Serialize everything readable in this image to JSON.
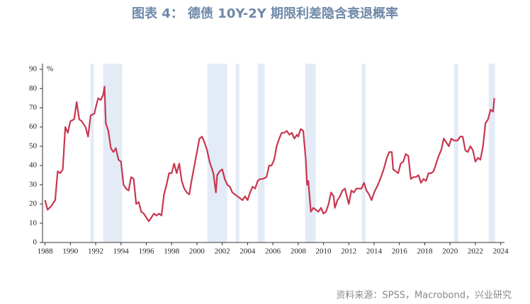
{
  "chart_data": {
    "type": "line",
    "title": "图表 4： 德债 10Y-2Y 期限利差隐含衰退概率",
    "source": "资料来源：SPSS，Macrobond，兴业研究",
    "y_unit": "%",
    "color": "#c8374f",
    "shade_color": "#e3ebf6",
    "shaded_periods": [
      [
        1991.58,
        1991.86
      ],
      [
        1992.59,
        1994.1
      ],
      [
        2000.82,
        2002.39
      ],
      [
        2003.06,
        2003.34
      ],
      [
        2004.8,
        2005.36
      ],
      [
        2008.55,
        2009.39
      ],
      [
        2013.03,
        2013.31
      ],
      [
        2020.31,
        2020.64
      ],
      [
        2023.05,
        2023.55
      ]
    ],
    "x": [
      1988.0,
      1988.2,
      1988.5,
      1988.8,
      1989.0,
      1989.2,
      1989.4,
      1989.6,
      1989.8,
      1990.0,
      1990.3,
      1990.5,
      1990.7,
      1990.9,
      1991.2,
      1991.4,
      1991.6,
      1991.9,
      1992.0,
      1992.2,
      1992.4,
      1992.6,
      1992.7,
      1992.8,
      1993.0,
      1993.2,
      1993.4,
      1993.6,
      1993.8,
      1994.0,
      1994.2,
      1994.4,
      1994.6,
      1994.8,
      1995.0,
      1995.2,
      1995.4,
      1995.6,
      1995.8,
      1996.0,
      1996.2,
      1996.4,
      1996.6,
      1996.8,
      1997.0,
      1997.2,
      1997.4,
      1997.6,
      1997.8,
      1998.0,
      1998.2,
      1998.4,
      1998.6,
      1998.8,
      1999.0,
      1999.2,
      1999.4,
      1999.6,
      1999.8,
      2000.0,
      2000.2,
      2000.4,
      2000.6,
      2000.8,
      2001.0,
      2001.3,
      2001.5,
      2001.6,
      2001.8,
      2002.0,
      2002.2,
      2002.4,
      2002.6,
      2002.8,
      2003.0,
      2003.2,
      2003.4,
      2003.6,
      2003.8,
      2004.0,
      2004.2,
      2004.4,
      2004.6,
      2004.8,
      2005.0,
      2005.2,
      2005.5,
      2005.7,
      2005.9,
      2006.1,
      2006.3,
      2006.5,
      2006.7,
      2006.9,
      2007.1,
      2007.3,
      2007.5,
      2007.7,
      2007.9,
      2008.0,
      2008.2,
      2008.4,
      2008.6,
      2008.7,
      2008.8,
      2009.0,
      2009.2,
      2009.4,
      2009.6,
      2009.8,
      2010.0,
      2010.2,
      2010.4,
      2010.6,
      2010.8,
      2010.9,
      2011.1,
      2011.3,
      2011.5,
      2011.7,
      2011.8,
      2012.0,
      2012.2,
      2012.4,
      2012.6,
      2012.8,
      2013.0,
      2013.2,
      2013.4,
      2013.6,
      2013.8,
      2014.0,
      2014.3,
      2014.6,
      2014.8,
      2015.0,
      2015.2,
      2015.4,
      2015.5,
      2015.7,
      2015.9,
      2016.1,
      2016.3,
      2016.5,
      2016.7,
      2016.9,
      2017.1,
      2017.3,
      2017.5,
      2017.7,
      2017.9,
      2018.1,
      2018.3,
      2018.5,
      2018.7,
      2018.9,
      2019.1,
      2019.3,
      2019.5,
      2019.7,
      2019.9,
      2020.1,
      2020.3,
      2020.6,
      2020.8,
      2021.0,
      2021.2,
      2021.4,
      2021.6,
      2021.8,
      2022.0,
      2022.2,
      2022.4,
      2022.6,
      2022.8,
      2023.0,
      2023.2,
      2023.4,
      2023.5
    ],
    "values": [
      22,
      17,
      19,
      22,
      37,
      36,
      38,
      60,
      57,
      63,
      64,
      73,
      64,
      63,
      60,
      55,
      66,
      67,
      70,
      75,
      74,
      77,
      81,
      62,
      58,
      49,
      47,
      49,
      43,
      42,
      30,
      28,
      27,
      34,
      33,
      20,
      21,
      16,
      15,
      13,
      11,
      13,
      15,
      14,
      15,
      14,
      25,
      30,
      36,
      36,
      41,
      36,
      41,
      32,
      28,
      26,
      25,
      33,
      40,
      47,
      54,
      55,
      52,
      48,
      42,
      36,
      26,
      35,
      37,
      38,
      33,
      30,
      29,
      26,
      25,
      24,
      23,
      22,
      24,
      22,
      26,
      29,
      28,
      32,
      33,
      33,
      34,
      40,
      40,
      43,
      50,
      54,
      57,
      57,
      58,
      56,
      57,
      54,
      56,
      55,
      59,
      58,
      43,
      30,
      32,
      16,
      18,
      17,
      16,
      18,
      15,
      16,
      20,
      26,
      24,
      18,
      22,
      24,
      27,
      28,
      25,
      20,
      27,
      26,
      28,
      28,
      28,
      31,
      27,
      25,
      22,
      26,
      30,
      35,
      39,
      44,
      47,
      47,
      38,
      37,
      36,
      41,
      42,
      46,
      45,
      33,
      34,
      34,
      35,
      31,
      33,
      32,
      36,
      36,
      37,
      41,
      45,
      48,
      54,
      52,
      50,
      54,
      53,
      53,
      55,
      55,
      48,
      47,
      50,
      48,
      42,
      44,
      43,
      50,
      62,
      64,
      69,
      68,
      75
    ],
    "xlim": [
      1987.8,
      2024.3
    ],
    "xticks": [
      1988,
      1990,
      1992,
      1994,
      1996,
      1998,
      2000,
      2002,
      2004,
      2006,
      2008,
      2010,
      2012,
      2014,
      2016,
      2018,
      2020,
      2022,
      2024
    ],
    "ylim": [
      0,
      90
    ],
    "yticks": [
      0,
      10,
      20,
      30,
      40,
      50,
      60,
      70,
      80,
      90
    ]
  }
}
